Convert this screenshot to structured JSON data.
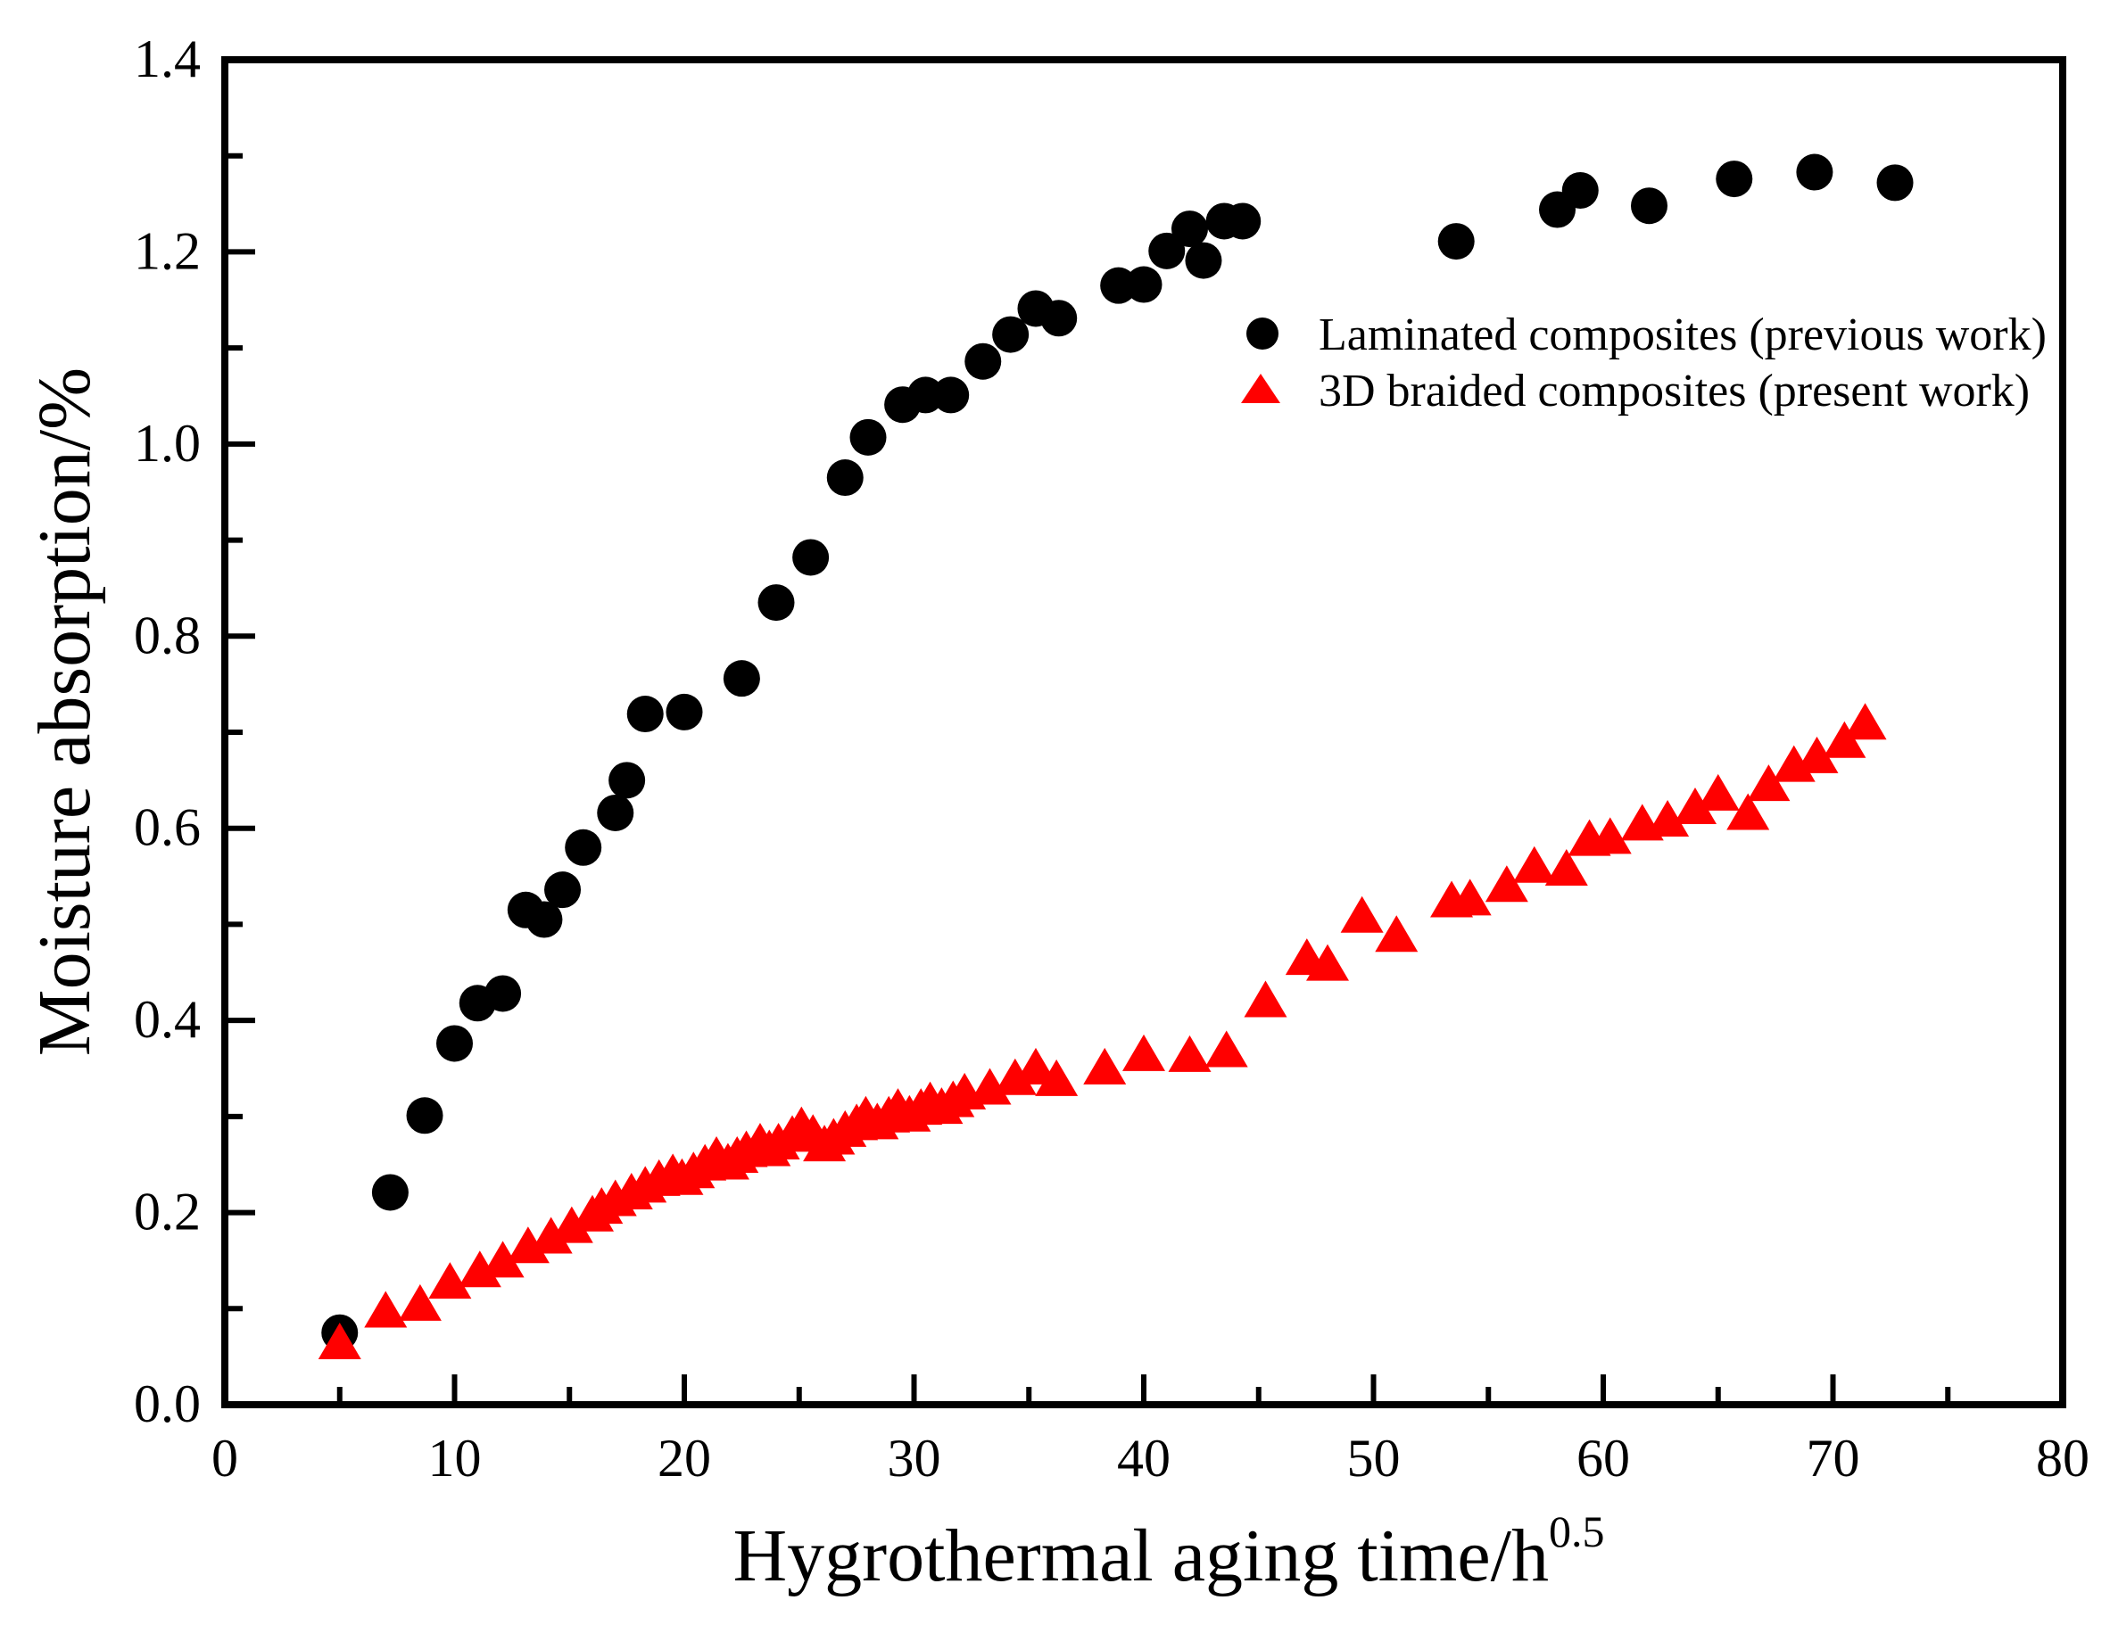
{
  "figure": {
    "background": "#ffffff",
    "frame_color": "#000000"
  },
  "chart_data": {
    "type": "scatter",
    "title": "",
    "xlabel": "Hygrothermal aging time/h",
    "xlabel_superscript": "0.5",
    "ylabel": "Moisture absorption/%",
    "xlim": [
      0,
      80
    ],
    "ylim": [
      0,
      1.4
    ],
    "grid": false,
    "x_major_ticks": [
      0,
      10,
      20,
      30,
      40,
      50,
      60,
      70,
      80
    ],
    "x_major_tick_labels": [
      "0",
      "10",
      "20",
      "30",
      "40",
      "50",
      "60",
      "70",
      "80"
    ],
    "x_minor_ticks": [
      5,
      15,
      25,
      35,
      45,
      55,
      65,
      75
    ],
    "y_major_ticks": [
      0,
      0.2,
      0.4,
      0.6,
      0.8,
      1.0,
      1.2,
      1.4
    ],
    "y_major_tick_labels": [
      "0.0",
      "0.2",
      "0.4",
      "0.6",
      "0.8",
      "1.0",
      "1.2",
      "1.4"
    ],
    "y_minor_ticks": [
      0.1,
      0.3,
      0.5,
      0.7,
      0.9,
      1.1,
      1.3
    ],
    "legend": {
      "position": "inside-upper-right",
      "entries": [
        {
          "label": "Laminated composites (previous work)",
          "marker": "circle",
          "color": "#000000"
        },
        {
          "label": "3D braided composites (present work)",
          "marker": "triangle",
          "color": "#ff0000"
        }
      ]
    },
    "series": [
      {
        "name": "Laminated composites (previous work)",
        "marker": "circle",
        "color": "#000000",
        "points": [
          [
            5,
            0.075
          ],
          [
            7.2,
            0.221
          ],
          [
            8.7,
            0.301
          ],
          [
            10,
            0.376
          ],
          [
            11,
            0.418
          ],
          [
            12.1,
            0.428
          ],
          [
            13.1,
            0.515
          ],
          [
            13.9,
            0.505
          ],
          [
            14.7,
            0.536
          ],
          [
            15.6,
            0.58
          ],
          [
            17,
            0.616
          ],
          [
            17.5,
            0.65
          ],
          [
            18.3,
            0.719
          ],
          [
            20,
            0.721
          ],
          [
            22.5,
            0.756
          ],
          [
            24,
            0.835
          ],
          [
            25.5,
            0.882
          ],
          [
            27,
            0.965
          ],
          [
            28,
            1.007
          ],
          [
            29.5,
            1.041
          ],
          [
            30.5,
            1.051
          ],
          [
            31.6,
            1.051
          ],
          [
            33,
            1.086
          ],
          [
            34.2,
            1.114
          ],
          [
            35.3,
            1.141
          ],
          [
            36.3,
            1.131
          ],
          [
            38.9,
            1.165
          ],
          [
            40,
            1.166
          ],
          [
            41,
            1.201
          ],
          [
            42,
            1.224
          ],
          [
            42.6,
            1.191
          ],
          [
            43.5,
            1.232
          ],
          [
            44.3,
            1.232
          ],
          [
            53.6,
            1.211
          ],
          [
            58,
            1.244
          ],
          [
            59,
            1.264
          ],
          [
            62,
            1.248
          ],
          [
            65.7,
            1.276
          ],
          [
            69.2,
            1.283
          ],
          [
            72.7,
            1.272
          ]
        ]
      },
      {
        "name": "3D braided composites (present work)",
        "marker": "triangle",
        "color": "#ff0000",
        "points": [
          [
            5,
            0.065
          ],
          [
            7,
            0.098
          ],
          [
            8.5,
            0.105
          ],
          [
            9.8,
            0.128
          ],
          [
            11.1,
            0.14
          ],
          [
            12.1,
            0.15
          ],
          [
            13.2,
            0.165
          ],
          [
            14.2,
            0.175
          ],
          [
            15.1,
            0.186
          ],
          [
            16,
            0.198
          ],
          [
            16.4,
            0.206
          ],
          [
            17,
            0.214
          ],
          [
            17.7,
            0.221
          ],
          [
            18.3,
            0.228
          ],
          [
            18.9,
            0.235
          ],
          [
            19.5,
            0.241
          ],
          [
            19.9,
            0.236
          ],
          [
            20.4,
            0.243
          ],
          [
            20.9,
            0.251
          ],
          [
            21.4,
            0.259
          ],
          [
            21.9,
            0.252
          ],
          [
            22.3,
            0.259
          ],
          [
            22.7,
            0.265
          ],
          [
            23.3,
            0.273
          ],
          [
            23.7,
            0.266
          ],
          [
            24.1,
            0.273
          ],
          [
            24.7,
            0.281
          ],
          [
            25.1,
            0.29
          ],
          [
            25.6,
            0.282
          ],
          [
            26.1,
            0.271
          ],
          [
            26.5,
            0.278
          ],
          [
            27,
            0.286
          ],
          [
            27.5,
            0.293
          ],
          [
            27.9,
            0.301
          ],
          [
            28.4,
            0.294
          ],
          [
            28.9,
            0.301
          ],
          [
            29.3,
            0.309
          ],
          [
            29.8,
            0.302
          ],
          [
            30.3,
            0.309
          ],
          [
            30.7,
            0.316
          ],
          [
            31.2,
            0.31
          ],
          [
            31.7,
            0.317
          ],
          [
            32.2,
            0.325
          ],
          [
            33.3,
            0.33
          ],
          [
            34.4,
            0.34
          ],
          [
            35.3,
            0.351
          ],
          [
            36.2,
            0.339
          ],
          [
            38.3,
            0.351
          ],
          [
            40,
            0.365
          ],
          [
            42,
            0.364
          ],
          [
            43.6,
            0.369
          ],
          [
            45.3,
            0.421
          ],
          [
            47.1,
            0.465
          ],
          [
            48,
            0.459
          ],
          [
            49.5,
            0.509
          ],
          [
            51,
            0.489
          ],
          [
            53.4,
            0.525
          ],
          [
            54.2,
            0.527
          ],
          [
            55.8,
            0.541
          ],
          [
            57,
            0.561
          ],
          [
            58.4,
            0.558
          ],
          [
            59.4,
            0.589
          ],
          [
            60.3,
            0.591
          ],
          [
            61.7,
            0.605
          ],
          [
            62.8,
            0.609
          ],
          [
            64,
            0.622
          ],
          [
            65,
            0.636
          ],
          [
            66.3,
            0.616
          ],
          [
            67.2,
            0.646
          ],
          [
            68.3,
            0.666
          ],
          [
            69.3,
            0.675
          ],
          [
            70.5,
            0.691
          ],
          [
            71.4,
            0.71
          ]
        ]
      }
    ]
  }
}
